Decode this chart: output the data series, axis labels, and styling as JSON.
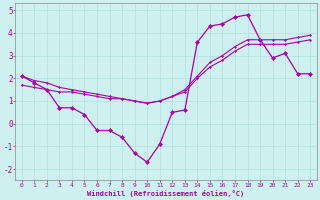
{
  "xlabel": "Windchill (Refroidissement éolien,°C)",
  "bg_color": "#cef0f0",
  "line_color": "#aa00aa",
  "xlim": [
    -0.5,
    23.5
  ],
  "ylim": [
    -2.5,
    5.3
  ],
  "xticks": [
    0,
    1,
    2,
    3,
    4,
    5,
    6,
    7,
    8,
    9,
    10,
    11,
    12,
    13,
    14,
    15,
    16,
    17,
    18,
    19,
    20,
    21,
    22,
    23
  ],
  "yticks": [
    -2,
    -1,
    0,
    1,
    2,
    3,
    4,
    5
  ],
  "main_x": [
    0,
    1,
    2,
    3,
    4,
    5,
    6,
    7,
    8,
    9,
    10,
    11,
    12,
    13,
    14,
    15,
    16,
    17,
    18,
    19,
    20,
    21,
    22,
    23
  ],
  "main_y": [
    2.1,
    1.8,
    1.5,
    0.7,
    0.7,
    0.4,
    -0.3,
    -0.3,
    -0.6,
    -1.3,
    -1.7,
    -0.9,
    0.5,
    0.6,
    3.6,
    4.3,
    4.4,
    4.7,
    4.8,
    3.7,
    2.9,
    3.1,
    2.2,
    2.2
  ],
  "trend1_x": [
    0,
    1,
    2,
    3,
    4,
    5,
    6,
    7,
    8,
    9,
    10,
    11,
    12,
    13,
    14,
    15,
    16,
    17,
    18,
    19,
    20,
    21,
    22,
    23
  ],
  "trend1_y": [
    1.7,
    1.6,
    1.5,
    1.4,
    1.4,
    1.3,
    1.2,
    1.1,
    1.1,
    1.0,
    0.9,
    1.0,
    1.2,
    1.4,
    2.0,
    2.5,
    2.8,
    3.2,
    3.5,
    3.5,
    3.5,
    3.5,
    3.6,
    3.7
  ],
  "trend2_x": [
    0,
    1,
    2,
    3,
    4,
    5,
    6,
    7,
    8,
    9,
    10,
    11,
    12,
    13,
    14,
    15,
    16,
    17,
    18,
    19,
    20,
    21,
    22,
    23
  ],
  "trend2_y": [
    2.1,
    1.9,
    1.8,
    1.6,
    1.5,
    1.4,
    1.3,
    1.2,
    1.1,
    1.0,
    0.9,
    1.0,
    1.2,
    1.5,
    2.1,
    2.7,
    3.0,
    3.4,
    3.7,
    3.7,
    3.7,
    3.7,
    3.8,
    3.9
  ]
}
